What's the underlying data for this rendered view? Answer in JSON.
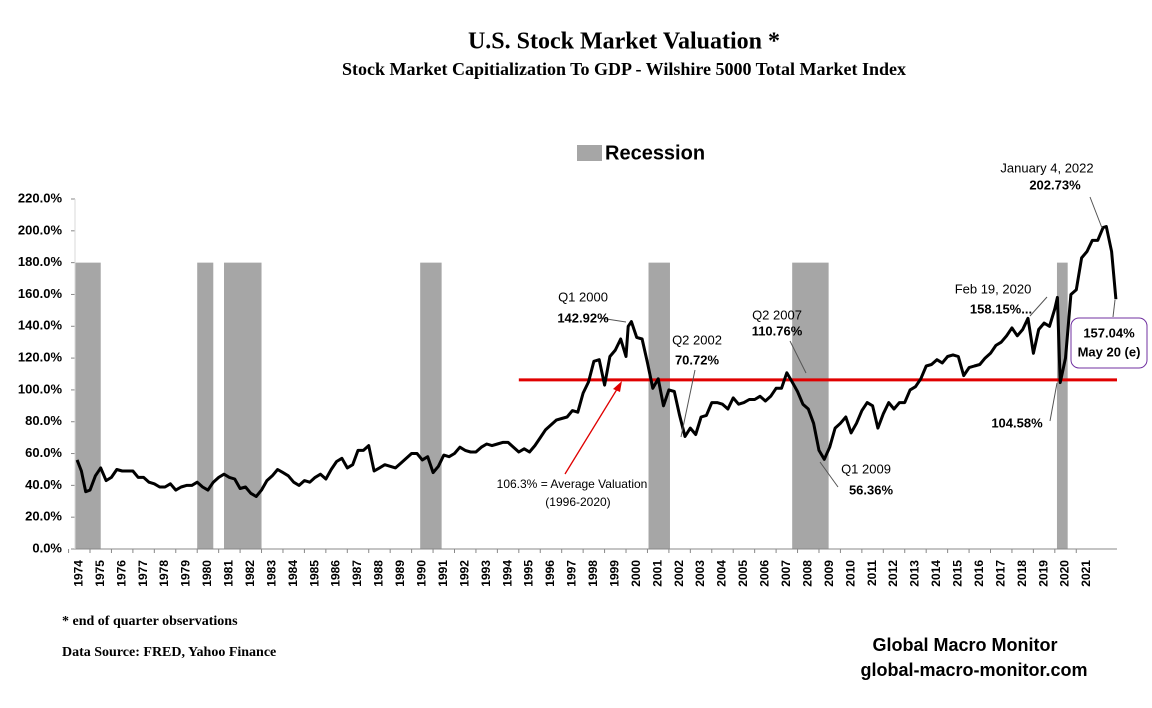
{
  "chart_data": {
    "type": "line",
    "title": "U.S. Stock Market Valuation *",
    "subtitle": "Stock Market  Capitialization  To GDP -  Wilshire  5000 Total Market Index",
    "x": [
      1974.4,
      1974.6,
      1974.8,
      1975.0,
      1975.25,
      1975.5,
      1975.75,
      1976.0,
      1976.25,
      1976.5,
      1976.75,
      1977.0,
      1977.25,
      1977.5,
      1977.75,
      1978.0,
      1978.25,
      1978.5,
      1978.75,
      1979.0,
      1979.25,
      1979.5,
      1979.75,
      1980.0,
      1980.25,
      1980.5,
      1980.75,
      1981.0,
      1981.25,
      1981.5,
      1981.75,
      1982.0,
      1982.25,
      1982.5,
      1982.75,
      1983.0,
      1983.25,
      1983.5,
      1983.75,
      1984.0,
      1984.25,
      1984.5,
      1984.75,
      1985.0,
      1985.25,
      1985.5,
      1985.75,
      1986.0,
      1986.25,
      1986.5,
      1986.75,
      1987.0,
      1987.25,
      1987.5,
      1987.75,
      1988.0,
      1988.25,
      1988.5,
      1988.75,
      1989.0,
      1989.25,
      1989.5,
      1989.75,
      1990.0,
      1990.25,
      1990.5,
      1990.75,
      1991.0,
      1991.25,
      1991.5,
      1991.75,
      1992.0,
      1992.25,
      1992.5,
      1992.75,
      1993.0,
      1993.25,
      1993.5,
      1993.75,
      1994.0,
      1994.25,
      1994.5,
      1994.75,
      1995.0,
      1995.25,
      1995.5,
      1995.75,
      1996.0,
      1996.25,
      1996.5,
      1996.75,
      1997.0,
      1997.25,
      1997.5,
      1997.75,
      1998.0,
      1998.25,
      1998.5,
      1998.75,
      1999.0,
      1999.25,
      1999.5,
      1999.75,
      2000.0,
      2000.1,
      2000.25,
      2000.5,
      2000.75,
      2001.0,
      2001.25,
      2001.5,
      2001.75,
      2002.0,
      2002.25,
      2002.5,
      2002.75,
      2003.0,
      2003.25,
      2003.5,
      2003.75,
      2004.0,
      2004.25,
      2004.5,
      2004.75,
      2005.0,
      2005.25,
      2005.5,
      2005.75,
      2006.0,
      2006.25,
      2006.5,
      2006.75,
      2007.0,
      2007.25,
      2007.5,
      2007.75,
      2008.0,
      2008.25,
      2008.5,
      2008.75,
      2009.0,
      2009.25,
      2009.5,
      2009.75,
      2010.0,
      2010.25,
      2010.5,
      2010.75,
      2011.0,
      2011.25,
      2011.5,
      2011.75,
      2012.0,
      2012.25,
      2012.5,
      2012.75,
      2013.0,
      2013.25,
      2013.5,
      2013.75,
      2014.0,
      2014.25,
      2014.5,
      2014.75,
      2015.0,
      2015.25,
      2015.5,
      2015.75,
      2016.0,
      2016.25,
      2016.5,
      2016.75,
      2017.0,
      2017.25,
      2017.5,
      2017.75,
      2018.0,
      2018.25,
      2018.5,
      2018.75,
      2019.0,
      2019.25,
      2019.5,
      2019.75,
      2020.0,
      2020.12,
      2020.25,
      2020.5,
      2020.75,
      2021.0,
      2021.25,
      2021.5,
      2021.75,
      2022.0,
      2022.25,
      2022.4,
      2022.65,
      2022.85
    ],
    "series": [
      {
        "name": "Stock Market Cap to GDP",
        "color": "#000000",
        "values": [
          56,
          49,
          36,
          37,
          46,
          51,
          43,
          45,
          50,
          49,
          49,
          49,
          45,
          45,
          42,
          41,
          39,
          39,
          41,
          37,
          39,
          40,
          40,
          42,
          39,
          37,
          42,
          45,
          47,
          45,
          44,
          38,
          39,
          35,
          33,
          37,
          43,
          46,
          50,
          48,
          46,
          42,
          40,
          43,
          42,
          45,
          47,
          44,
          50,
          55,
          57,
          51,
          53,
          62,
          62,
          65,
          49,
          51,
          53,
          52,
          51,
          54,
          57,
          60,
          60,
          56,
          58,
          48,
          52,
          59,
          58,
          60,
          64,
          62,
          61,
          61,
          64,
          66,
          65,
          66,
          67,
          67,
          64,
          61,
          63,
          61,
          65,
          70,
          75,
          78,
          81,
          82,
          83,
          87,
          86,
          98,
          105,
          118,
          119,
          103,
          121,
          125,
          132,
          121,
          140,
          142.92,
          133,
          132,
          117,
          101,
          107,
          90,
          100,
          99,
          84,
          70.72,
          76,
          72,
          83,
          84,
          92,
          92,
          91,
          88,
          95,
          91,
          92,
          94,
          94,
          96,
          93,
          96,
          101,
          101,
          110.76,
          105,
          99,
          91,
          88,
          79,
          62,
          56.36,
          64,
          76,
          79,
          83,
          73,
          79,
          87,
          92,
          90,
          76,
          85,
          92,
          88,
          92,
          92,
          100,
          102,
          107,
          115,
          116,
          119,
          117,
          121,
          122,
          121,
          109,
          114,
          115,
          116,
          120,
          123,
          128,
          130,
          134,
          139,
          134,
          138,
          145,
          123,
          138,
          142,
          140,
          151,
          158.15,
          104.58,
          120,
          160,
          163,
          183,
          187,
          194,
          194,
          202,
          202.73,
          187,
          157.04
        ]
      }
    ],
    "recession_label": "Recession",
    "recession_color": "#a6a6a6",
    "recessions": [
      [
        1974.3,
        1975.5
      ],
      [
        1980.0,
        1980.75
      ],
      [
        1981.25,
        1983.0
      ],
      [
        1990.4,
        1991.4
      ],
      [
        2001.05,
        2002.05
      ],
      [
        2007.75,
        2009.45
      ],
      [
        2020.1,
        2020.6
      ]
    ],
    "average": {
      "value": 106.3,
      "start": 1995.0,
      "color": "#e00000",
      "label": "106.3% = Average Valuation",
      "period": "(1996-2020)"
    },
    "annotations": [
      {
        "text": "Q1 2000",
        "value_label": "142.92%"
      },
      {
        "text": "Q2 2002",
        "value_label": "70.72%"
      },
      {
        "text": "Q2 2007",
        "value_label": "110.76%"
      },
      {
        "text": "Q1 2009",
        "value_label": "56.36%"
      },
      {
        "text": "Feb 19, 2020",
        "value_label": "158.15%..."
      },
      {
        "value_label": "104.58%"
      },
      {
        "text": "January 4, 2022",
        "value_label": "202.73%"
      },
      {
        "value_label": "157.04%",
        "text": "May 20 (e)"
      }
    ],
    "xlim": [
      1974.3,
      2022.9
    ],
    "xticks": [
      1974,
      1975,
      1976,
      1977,
      1978,
      1979,
      1980,
      1981,
      1982,
      1983,
      1984,
      1985,
      1986,
      1987,
      1988,
      1989,
      1990,
      1991,
      1992,
      1993,
      1994,
      1995,
      1996,
      1997,
      1998,
      1999,
      2000,
      2001,
      2002,
      2003,
      2004,
      2005,
      2006,
      2007,
      2008,
      2009,
      2010,
      2011,
      2012,
      2013,
      2014,
      2015,
      2016,
      2017,
      2018,
      2019,
      2020,
      2021
    ],
    "ylim": [
      0,
      220
    ],
    "yticks": [
      {
        "value": 0,
        "label": "0.0%"
      },
      {
        "value": 20,
        "label": "20.0%"
      },
      {
        "value": 40,
        "label": "40.0%"
      },
      {
        "value": 60,
        "label": "60.0%"
      },
      {
        "value": 80,
        "label": "80.0%"
      },
      {
        "value": 100,
        "label": "100.0%"
      },
      {
        "value": 120,
        "label": "120.0%"
      },
      {
        "value": 140,
        "label": "140.0%"
      },
      {
        "value": 160,
        "label": "160.0%"
      },
      {
        "value": 180,
        "label": "180.0%"
      },
      {
        "value": 200,
        "label": "200.0%"
      },
      {
        "value": 220,
        "label": "220.0%"
      }
    ],
    "grid": false,
    "footnote": "*   end of quarter  observations",
    "source": "Data Source:  FRED, Yahoo Finance",
    "brand": "Global  Macro Monitor",
    "website": "global-macro-monitor.com"
  }
}
